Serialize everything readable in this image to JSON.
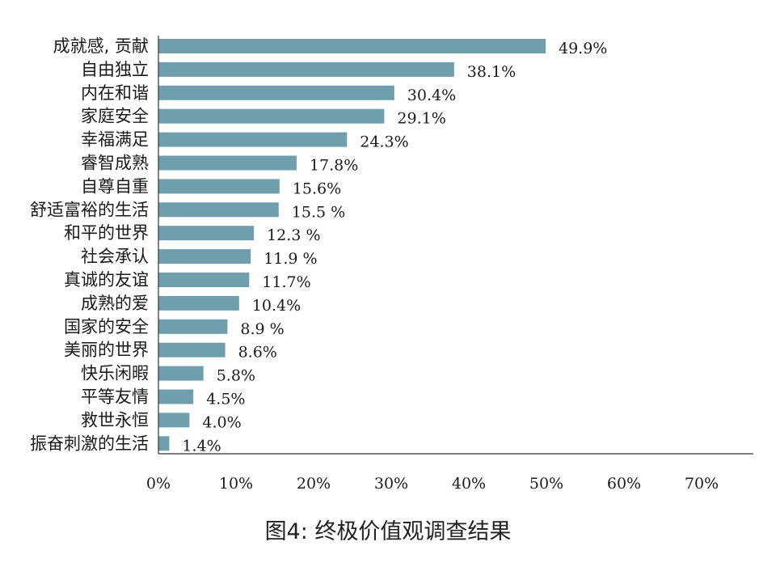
{
  "chart_data": {
    "type": "bar",
    "orientation": "horizontal",
    "caption": "图4: 终极价值观调查结果",
    "categories": [
      "成就感, 贡献",
      "自由独立",
      "内在和谐",
      "家庭安全",
      "幸福满足",
      "睿智成熟",
      "自尊自重",
      "舒适富裕的生活",
      "和平的世界",
      "社会承认",
      "真诚的友谊",
      "成熟的爱",
      "国家的安全",
      "美丽的世界",
      "快乐闲暇",
      "平等友情",
      "救世永恒",
      "振奋刺激的生活"
    ],
    "values": [
      49.9,
      38.1,
      30.4,
      29.1,
      24.3,
      17.8,
      15.6,
      15.5,
      12.3,
      11.9,
      11.7,
      10.4,
      8.9,
      8.6,
      5.8,
      4.5,
      4.0,
      1.4
    ],
    "value_labels": [
      "49.9%",
      "38.1%",
      "30.4%",
      "29.1%",
      "24.3%",
      "17.8%",
      "15.6%",
      "15.5 %",
      "12.3 %",
      "11.9 %",
      "11.7%",
      "10.4%",
      "8.9 %",
      "8.6%",
      "5.8%",
      "4.5%",
      "4.0%",
      "1.4%"
    ],
    "xticks": [
      "0%",
      "10%",
      "20%",
      "30%",
      "40%",
      "50%",
      "60%",
      "70%"
    ],
    "xlim": [
      0,
      70
    ],
    "bar_color": "#6f9fad",
    "grid": false
  }
}
